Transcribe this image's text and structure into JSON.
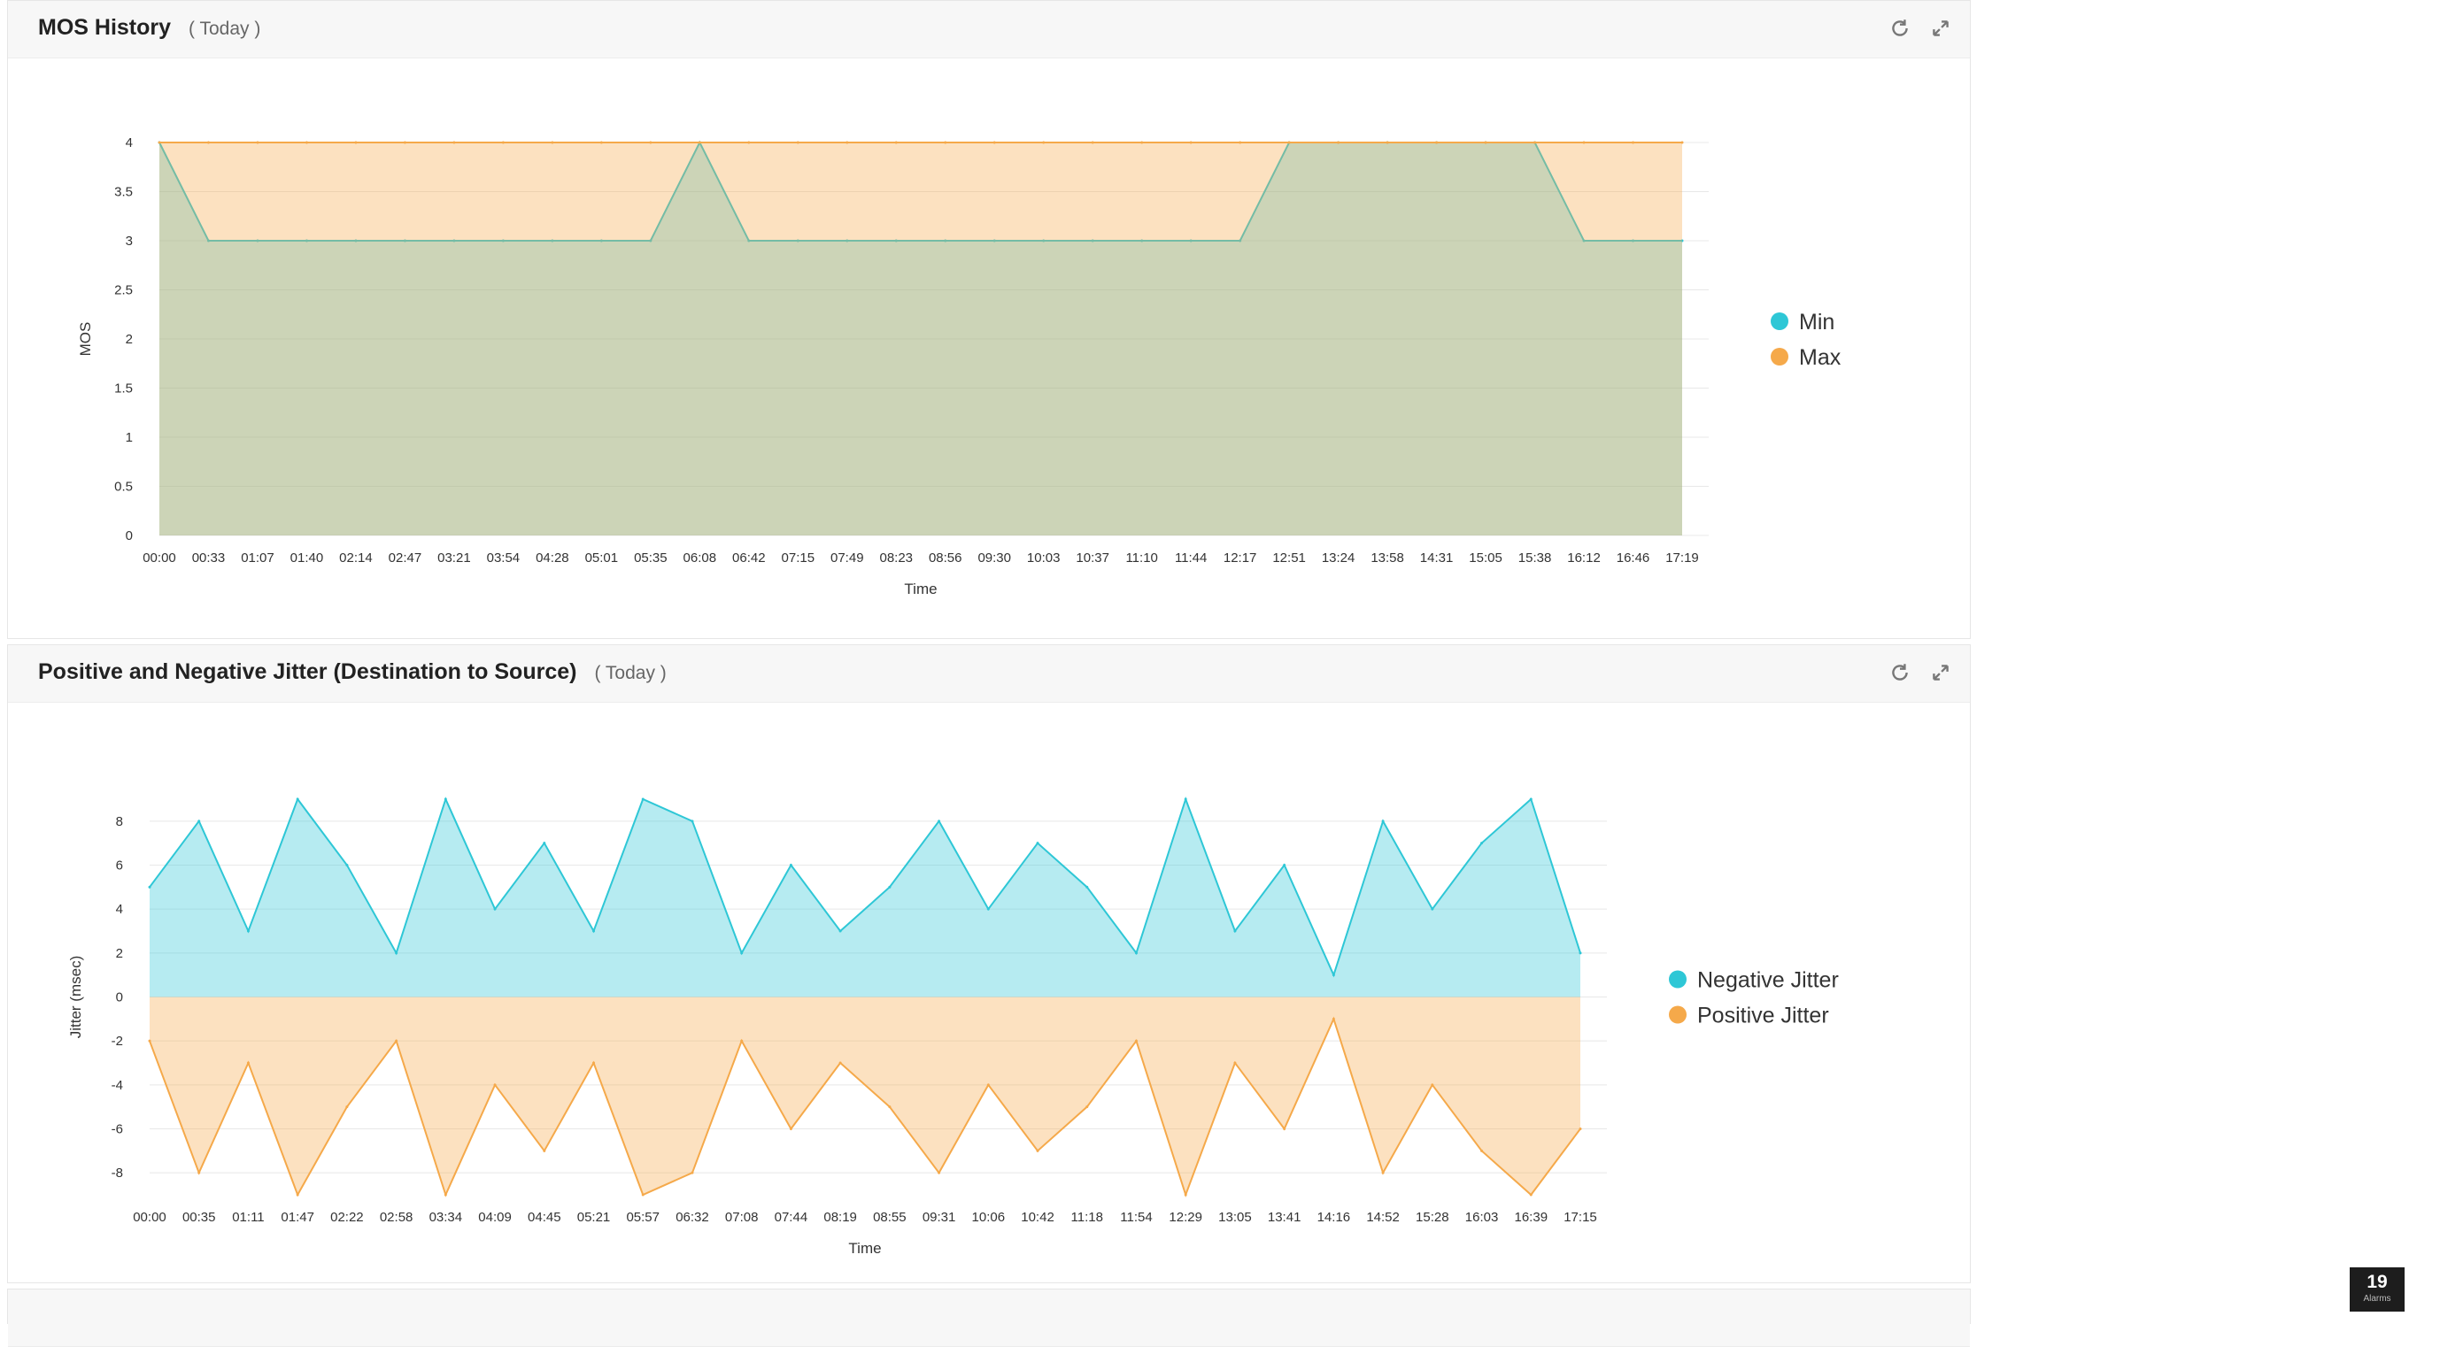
{
  "panels": [
    {
      "title": "MOS History",
      "range": "( Today )",
      "chart_data": {
        "type": "area",
        "title": "MOS History",
        "xlabel": "Time",
        "ylabel": "MOS",
        "ylim": [
          0,
          4
        ],
        "yticks": [
          0,
          0.5,
          1,
          1.5,
          2,
          2.5,
          3,
          3.5,
          4
        ],
        "x": [
          "00:00",
          "00:33",
          "01:07",
          "01:40",
          "02:14",
          "02:47",
          "03:21",
          "03:54",
          "04:28",
          "05:01",
          "05:35",
          "06:08",
          "06:42",
          "07:15",
          "07:49",
          "08:23",
          "08:56",
          "09:30",
          "10:03",
          "10:37",
          "11:10",
          "11:44",
          "12:17",
          "12:51",
          "13:24",
          "13:58",
          "14:31",
          "15:05",
          "15:38",
          "16:12",
          "16:46",
          "17:19"
        ],
        "legend_position": "right",
        "series": [
          {
            "name": "Min",
            "color": "#2ec7d6",
            "values": [
              4,
              3,
              3,
              3,
              3,
              3,
              3,
              3,
              3,
              3,
              3,
              4,
              3,
              3,
              3,
              3,
              3,
              3,
              3,
              3,
              3,
              3,
              3,
              4,
              4,
              4,
              4,
              4,
              4,
              3,
              3,
              3
            ]
          },
          {
            "name": "Max",
            "color": "#f5a94a",
            "values": [
              4,
              4,
              4,
              4,
              4,
              4,
              4,
              4,
              4,
              4,
              4,
              4,
              4,
              4,
              4,
              4,
              4,
              4,
              4,
              4,
              4,
              4,
              4,
              4,
              4,
              4,
              4,
              4,
              4,
              4,
              4,
              4
            ]
          }
        ]
      }
    },
    {
      "title": "Positive and Negative Jitter (Destination to Source)",
      "range": "( Today )",
      "chart_data": {
        "type": "area",
        "title": "Positive and Negative Jitter (Destination to Source)",
        "xlabel": "Time",
        "ylabel": "Jitter (msec)",
        "ylim": [
          -9,
          9
        ],
        "yticks": [
          -8,
          -6,
          -4,
          -2,
          0,
          2,
          4,
          6,
          8
        ],
        "x": [
          "00:00",
          "00:35",
          "01:11",
          "01:47",
          "02:22",
          "02:58",
          "03:34",
          "04:09",
          "04:45",
          "05:21",
          "05:57",
          "06:32",
          "07:08",
          "07:44",
          "08:19",
          "08:55",
          "09:31",
          "10:06",
          "10:42",
          "11:18",
          "11:54",
          "12:29",
          "13:05",
          "13:41",
          "14:16",
          "14:52",
          "15:28",
          "16:03",
          "16:39",
          "17:15"
        ],
        "legend_position": "right",
        "series": [
          {
            "name": "Negative Jitter",
            "color": "#2ec7d6",
            "values": [
              5,
              8,
              3,
              9,
              6,
              2,
              9,
              4,
              7,
              3,
              9,
              8,
              2,
              6,
              3,
              5,
              8,
              4,
              7,
              5,
              2,
              9,
              3,
              6,
              1,
              8,
              4,
              7,
              9,
              2
            ]
          },
          {
            "name": "Positive Jitter",
            "color": "#f5a94a",
            "values": [
              -2,
              -8,
              -3,
              -9,
              -5,
              -2,
              -9,
              -4,
              -7,
              -3,
              -9,
              -8,
              -2,
              -6,
              -3,
              -5,
              -8,
              -4,
              -7,
              -5,
              -2,
              -9,
              -3,
              -6,
              -1,
              -8,
              -4,
              -7,
              -9,
              -6
            ]
          }
        ]
      }
    }
  ],
  "badge": {
    "count": "19",
    "label": "Alarms"
  }
}
